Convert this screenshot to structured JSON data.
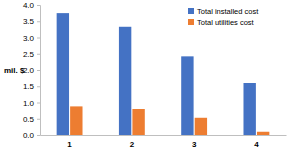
{
  "chart_data": {
    "type": "bar",
    "y_label": "mil. $",
    "categories": [
      "1",
      "2",
      "3",
      "4"
    ],
    "series": [
      {
        "name": "Total installed cost",
        "color": "#4472c4",
        "values": [
          3.75,
          3.33,
          2.42,
          1.6
        ]
      },
      {
        "name": "Total utilities cost",
        "color": "#ed7d31",
        "values": [
          0.88,
          0.8,
          0.53,
          0.1
        ]
      }
    ],
    "ylim": [
      0,
      4
    ],
    "yticks": [
      {
        "value": 0,
        "label": "0.0"
      },
      {
        "value": 0.5,
        "label": "0.5"
      },
      {
        "value": 1,
        "label": "1.0"
      },
      {
        "value": 1.5,
        "label": "1.5"
      },
      {
        "value": 2,
        "label": "2.0"
      },
      {
        "value": 2.5,
        "label": "2.5"
      },
      {
        "value": 3,
        "label": "3.0"
      },
      {
        "value": 3.5,
        "label": "3.5"
      },
      {
        "value": 4,
        "label": "4.0"
      }
    ],
    "grid": false,
    "legend": "top-right"
  }
}
